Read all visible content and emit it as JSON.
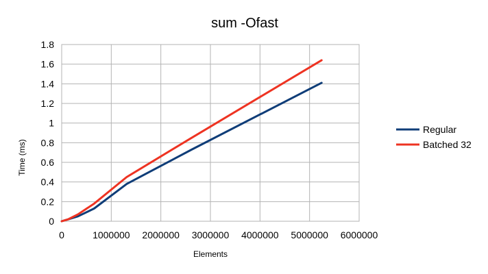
{
  "chart_data": {
    "type": "line",
    "title": "sum -Ofast",
    "xlabel": "Elements",
    "ylabel": "Time (ms)",
    "xlim": [
      0,
      6000000
    ],
    "ylim": [
      0,
      1.8
    ],
    "xticks": [
      0,
      1000000,
      2000000,
      3000000,
      4000000,
      5000000,
      6000000
    ],
    "xtick_labels": [
      "0",
      "1000000",
      "2000000",
      "3000000",
      "4000000",
      "5000000",
      "6000000"
    ],
    "yticks": [
      0,
      0.2,
      0.4,
      0.6,
      0.8,
      1.0,
      1.2,
      1.4,
      1.6,
      1.8
    ],
    "ytick_labels": [
      "0",
      "0.2",
      "0.4",
      "0.6",
      "0.8",
      "1",
      "1.2",
      "1.4",
      "1.6",
      "1.8"
    ],
    "grid": true,
    "legend_position": "right",
    "series": [
      {
        "name": "Regular",
        "color": "#0f3d78",
        "points": [
          [
            0,
            0
          ],
          [
            65536,
            0.01
          ],
          [
            131072,
            0.02
          ],
          [
            327680,
            0.05
          ],
          [
            655360,
            0.13
          ],
          [
            1310720,
            0.38
          ],
          [
            2621440,
            0.73
          ],
          [
            5242880,
            1.41
          ]
        ]
      },
      {
        "name": "Batched 32",
        "color": "#ee3322",
        "points": [
          [
            0,
            0
          ],
          [
            65536,
            0.01
          ],
          [
            131072,
            0.02
          ],
          [
            327680,
            0.07
          ],
          [
            655360,
            0.18
          ],
          [
            1310720,
            0.45
          ],
          [
            2621440,
            0.85
          ],
          [
            5242880,
            1.64
          ]
        ]
      }
    ]
  }
}
